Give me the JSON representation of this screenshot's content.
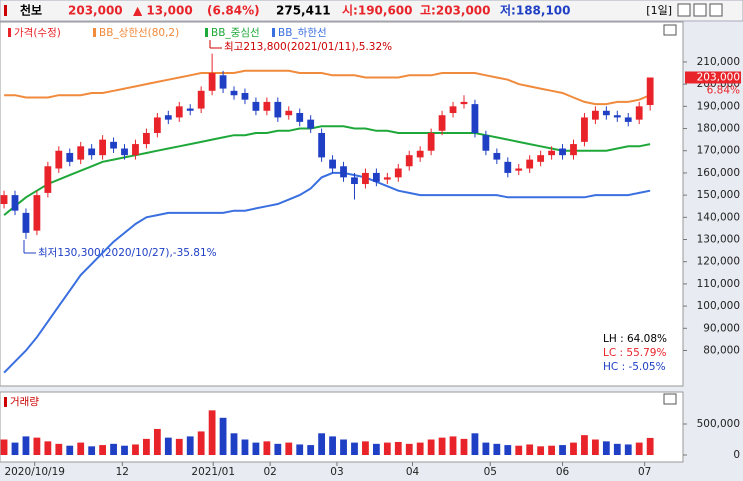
{
  "header": {
    "name": "천보",
    "price": "203,000",
    "change": "▲ 13,000",
    "change_pct": "(6.84%)",
    "volume": "275,411",
    "open": "시:190,600",
    "high": "고:203,000",
    "low": "저:188,100",
    "period": "[1일]"
  },
  "chart_data": [
    {
      "type": "candlestick",
      "name": "가격(수정)",
      "color_up": "#e8242a",
      "color_down": "#1f3fc4",
      "open": [
        146000,
        150000,
        142000,
        134000,
        151000,
        162000,
        169000,
        166000,
        171000,
        168000,
        174000,
        171000,
        168000,
        173000,
        178000,
        186000,
        185000,
        189000,
        189000,
        197000,
        204000,
        197000,
        196000,
        192000,
        188000,
        192000,
        186000,
        187000,
        184000,
        178000,
        166000,
        163000,
        158000,
        155000,
        160000,
        157000,
        158000,
        163000,
        167000,
        170000,
        179000,
        187000,
        191000,
        191000,
        177000,
        169000,
        165000,
        161000,
        162000,
        165000,
        168000,
        171000,
        168000,
        174000,
        184000,
        188000,
        186000,
        185000,
        184000,
        190600
      ],
      "high": [
        152000,
        152000,
        144000,
        152000,
        165000,
        172000,
        171000,
        174000,
        173000,
        177000,
        176000,
        173000,
        175000,
        180000,
        187000,
        188000,
        192000,
        191000,
        199000,
        213800,
        206000,
        199000,
        198000,
        194000,
        194000,
        194000,
        190000,
        189000,
        186000,
        180000,
        168000,
        165000,
        160000,
        162000,
        162000,
        160000,
        164000,
        170000,
        172000,
        180000,
        188000,
        192000,
        195000,
        193000,
        179000,
        171000,
        167000,
        164000,
        168000,
        170000,
        172000,
        173000,
        175000,
        187000,
        190000,
        190000,
        188000,
        187000,
        192000,
        203000
      ],
      "low": [
        144000,
        141000,
        130300,
        132000,
        149000,
        160000,
        163000,
        164000,
        166000,
        166000,
        169000,
        166000,
        166000,
        171000,
        176000,
        182000,
        183000,
        186000,
        187000,
        195000,
        196000,
        193000,
        191000,
        186000,
        186000,
        183000,
        184000,
        181000,
        178000,
        165000,
        160000,
        156000,
        148000,
        153000,
        154000,
        155000,
        156000,
        161000,
        165000,
        168000,
        177000,
        185000,
        189000,
        176000,
        168000,
        164000,
        158000,
        159000,
        160000,
        163000,
        166000,
        166000,
        166000,
        172000,
        182000,
        184000,
        183000,
        181000,
        182000,
        188100
      ],
      "close": [
        150000,
        143000,
        133000,
        150000,
        163000,
        170000,
        165000,
        172000,
        168000,
        175000,
        171000,
        168000,
        173000,
        178000,
        185000,
        184000,
        190000,
        188000,
        197000,
        205000,
        198000,
        195000,
        193000,
        188000,
        192000,
        185000,
        188000,
        183000,
        180000,
        167000,
        162000,
        158000,
        155000,
        160000,
        156000,
        158000,
        162000,
        168000,
        170000,
        178000,
        186000,
        190000,
        192000,
        178000,
        170000,
        166000,
        160000,
        162000,
        166000,
        168000,
        170000,
        168000,
        173000,
        185000,
        188000,
        186000,
        185000,
        183000,
        190000,
        203000
      ],
      "series": [
        {
          "name": "BB_상한선(80,2)",
          "color": "#f08a3c",
          "values": [
            195000,
            195000,
            194000,
            194000,
            194000,
            195000,
            195000,
            195000,
            196000,
            196000,
            197000,
            198000,
            199000,
            200000,
            201000,
            202000,
            203000,
            204000,
            205000,
            205000,
            205000,
            205000,
            206000,
            206000,
            206000,
            206000,
            206000,
            205000,
            205000,
            205000,
            204000,
            204000,
            204000,
            203000,
            203000,
            203000,
            203000,
            204000,
            204000,
            204000,
            205000,
            205000,
            205000,
            205000,
            204000,
            203000,
            202000,
            200000,
            199000,
            198000,
            197000,
            196000,
            194000,
            192000,
            191000,
            191000,
            192000,
            192000,
            193000,
            195000
          ]
        },
        {
          "name": "BB_중심선",
          "color": "#1fa83a",
          "values": [
            141000,
            145000,
            149000,
            152000,
            155000,
            157000,
            159000,
            161000,
            163000,
            165000,
            166000,
            167000,
            168000,
            169000,
            170000,
            171000,
            172000,
            173000,
            174000,
            175000,
            176000,
            177000,
            177000,
            178000,
            178000,
            179000,
            179000,
            180000,
            180000,
            181000,
            181000,
            181000,
            180000,
            180000,
            179000,
            179000,
            178000,
            178000,
            178000,
            178000,
            178000,
            178000,
            178000,
            178000,
            177000,
            176000,
            175000,
            174000,
            173000,
            172000,
            171000,
            170000,
            170000,
            170000,
            170000,
            170000,
            171000,
            172000,
            172000,
            173000
          ]
        },
        {
          "name": "BB_하한선",
          "color": "#3a6fe0",
          "values": [
            70000,
            75000,
            80000,
            86000,
            93000,
            100000,
            107000,
            114000,
            119000,
            124000,
            129000,
            133000,
            137000,
            140000,
            141000,
            142000,
            142000,
            142000,
            142000,
            142000,
            142000,
            143000,
            143000,
            144000,
            145000,
            146000,
            148000,
            150000,
            153000,
            158000,
            160000,
            160000,
            159000,
            158000,
            156000,
            154000,
            152000,
            151000,
            150000,
            150000,
            150000,
            150000,
            150000,
            150000,
            150000,
            150000,
            149000,
            149000,
            149000,
            149000,
            149000,
            149000,
            149000,
            149000,
            150000,
            150000,
            150000,
            150000,
            151000,
            152000
          ]
        }
      ],
      "xlim": [
        -0.37,
        62.0
      ],
      "ylim": [
        64000,
        228000
      ],
      "yticks": [
        {
          "value": 210000,
          "label": "210,000"
        },
        {
          "value": 200000,
          "label": "200,000"
        },
        {
          "value": 190000,
          "label": "190,000"
        },
        {
          "value": 180000,
          "label": "180,000"
        },
        {
          "value": 170000,
          "label": "170,000"
        },
        {
          "value": 160000,
          "label": "160,000"
        },
        {
          "value": 150000,
          "label": "150,000"
        },
        {
          "value": 140000,
          "label": "140,000"
        },
        {
          "value": 130000,
          "label": "130,000"
        },
        {
          "value": 120000,
          "label": "120,000"
        },
        {
          "value": 110000,
          "label": "110,000"
        },
        {
          "value": 100000,
          "label": "100,000"
        },
        {
          "value": 90000,
          "label": "90,000"
        },
        {
          "value": 80000,
          "label": "80,000"
        }
      ],
      "last_price_label": "203,000",
      "last_change_label": "6.84%",
      "annotations": [
        "최고213,800(2021/01/11),5.32%",
        "최저130,300(2020/10/27),-35.81%"
      ],
      "stats": [
        {
          "text": "LH : 64.08%",
          "color": "#000000"
        },
        {
          "text": "LC : 55.79%",
          "color": "#e8242a"
        },
        {
          "text": "HC : -5.05%",
          "color": "#1f3fc4"
        }
      ]
    },
    {
      "type": "bar",
      "title": "거래량",
      "values": [
        250000,
        200000,
        300000,
        280000,
        220000,
        180000,
        150000,
        200000,
        140000,
        160000,
        180000,
        150000,
        170000,
        260000,
        420000,
        280000,
        260000,
        300000,
        380000,
        720000,
        600000,
        350000,
        250000,
        200000,
        220000,
        180000,
        200000,
        170000,
        160000,
        350000,
        300000,
        250000,
        200000,
        220000,
        180000,
        200000,
        210000,
        180000,
        200000,
        250000,
        280000,
        300000,
        260000,
        350000,
        200000,
        180000,
        160000,
        150000,
        170000,
        140000,
        150000,
        160000,
        200000,
        320000,
        250000,
        220000,
        180000,
        170000,
        200000,
        275411
      ],
      "xlim": [
        -0.37,
        62.0
      ],
      "ylim": [
        0,
        1000000
      ],
      "yticks": [
        {
          "value": 500000,
          "label": "500,000"
        },
        0
      ],
      "xticks": [
        {
          "value": 2.8,
          "label": "2020/10/19"
        },
        {
          "value": 10.8,
          "label": "12"
        },
        {
          "value": 19.1,
          "label": "2021/01"
        },
        {
          "value": 24.3,
          "label": "02"
        },
        {
          "value": 30.4,
          "label": "03"
        },
        {
          "value": 37.3,
          "label": "04"
        },
        {
          "value": 44.4,
          "label": "05"
        },
        {
          "value": 51.0,
          "label": "06"
        },
        {
          "value": 58.5,
          "label": "07"
        }
      ]
    }
  ]
}
